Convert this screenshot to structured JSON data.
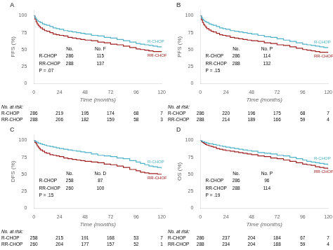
{
  "chart_data": [
    {
      "type": "line",
      "line_style": "step",
      "title": "A",
      "x_label": "Time (months)",
      "y_label": "FFS (%)",
      "xlim": [
        0,
        120
      ],
      "ylim": [
        0,
        108
      ],
      "xticks": [
        0,
        24,
        48,
        72,
        96,
        120
      ],
      "yticks": [
        0,
        25,
        50,
        75,
        100
      ],
      "grid": false,
      "table_header": [
        "No.",
        "No. F"
      ],
      "annotations": [
        "P = .07"
      ],
      "at_risk_title": "No. at risk:",
      "series": [
        {
          "name": "R-CHOP",
          "color": "#4eb3c8",
          "no": 286,
          "events": 115,
          "at_risk": [
            286,
            219,
            195,
            174,
            68,
            7
          ],
          "x": [
            0,
            1,
            2,
            3,
            4,
            5,
            6,
            8,
            10,
            12,
            15,
            18,
            21,
            24,
            28,
            32,
            36,
            40,
            44,
            48,
            54,
            60,
            66,
            72,
            78,
            84,
            90,
            96,
            100,
            104,
            108,
            112,
            116,
            120
          ],
          "values": [
            100,
            97,
            95,
            93,
            92,
            91,
            90,
            88,
            87,
            86,
            84,
            82,
            81,
            80,
            78,
            77,
            76,
            75,
            74,
            73,
            71,
            70,
            68,
            67,
            65,
            63,
            61,
            59,
            58,
            57,
            56,
            55,
            54,
            53
          ]
        },
        {
          "name": "RR-CHOP",
          "color": "#a02020",
          "no": 288,
          "events": 137,
          "at_risk": [
            288,
            206,
            182,
            159,
            58,
            3
          ],
          "x": [
            0,
            1,
            2,
            3,
            4,
            5,
            6,
            8,
            10,
            12,
            15,
            18,
            21,
            24,
            28,
            32,
            36,
            40,
            44,
            48,
            54,
            60,
            66,
            72,
            78,
            84,
            90,
            96,
            100,
            104,
            108,
            112,
            116,
            120
          ],
          "values": [
            100,
            95,
            91,
            88,
            86,
            84,
            82,
            80,
            78,
            77,
            75,
            73,
            72,
            71,
            70,
            68,
            67,
            66,
            65,
            64,
            63,
            61,
            60,
            58,
            57,
            55,
            53,
            51,
            50,
            49,
            48,
            47,
            47,
            46
          ]
        }
      ]
    },
    {
      "type": "line",
      "line_style": "step",
      "title": "B",
      "x_label": "Time (months)",
      "y_label": "PFS (%)",
      "xlim": [
        0,
        120
      ],
      "ylim": [
        0,
        108
      ],
      "xticks": [
        0,
        24,
        48,
        72,
        96,
        120
      ],
      "yticks": [
        0,
        25,
        50,
        75,
        100
      ],
      "grid": false,
      "table_header": [
        "No.",
        "No. P"
      ],
      "annotations": [
        "P = .15"
      ],
      "at_risk_title": "No. at risk:",
      "series": [
        {
          "name": "R-CHOP",
          "color": "#4eb3c8",
          "no": 286,
          "events": 114,
          "at_risk": [
            286,
            220,
            196,
            175,
            68,
            7
          ],
          "x": [
            0,
            1,
            2,
            3,
            4,
            5,
            6,
            8,
            10,
            12,
            15,
            18,
            21,
            24,
            28,
            32,
            36,
            40,
            44,
            48,
            54,
            60,
            66,
            72,
            78,
            84,
            90,
            96,
            100,
            104,
            108,
            112,
            116,
            120
          ],
          "values": [
            100,
            97,
            95,
            93,
            92,
            91,
            90,
            88,
            87,
            86,
            84,
            82,
            81,
            80,
            78,
            77,
            76,
            75,
            74,
            73,
            71,
            69,
            68,
            66,
            64,
            62,
            60,
            58,
            57,
            56,
            55,
            54,
            53,
            52
          ]
        },
        {
          "name": "RR-CHOP",
          "color": "#a02020",
          "no": 288,
          "events": 132,
          "at_risk": [
            288,
            214,
            189,
            166,
            59,
            4
          ],
          "x": [
            0,
            1,
            2,
            3,
            4,
            5,
            6,
            8,
            10,
            12,
            15,
            18,
            21,
            24,
            28,
            32,
            36,
            40,
            44,
            48,
            54,
            60,
            66,
            72,
            78,
            84,
            90,
            96,
            100,
            104,
            108,
            112,
            116,
            120
          ],
          "values": [
            100,
            94,
            90,
            87,
            85,
            83,
            81,
            79,
            77,
            76,
            74,
            72,
            71,
            70,
            68,
            67,
            66,
            65,
            64,
            63,
            62,
            60,
            59,
            57,
            56,
            54,
            52,
            50,
            49,
            48,
            47,
            46,
            46,
            45
          ]
        }
      ]
    },
    {
      "type": "line",
      "line_style": "step",
      "title": "C",
      "x_label": "Time (months)",
      "y_label": "DFS (%)",
      "xlim": [
        0,
        120
      ],
      "ylim": [
        0,
        108
      ],
      "xticks": [
        0,
        24,
        48,
        72,
        96,
        120
      ],
      "yticks": [
        0,
        25,
        50,
        75,
        100
      ],
      "grid": false,
      "table_header": [
        "No.",
        "No. D"
      ],
      "annotations": [
        "P = .15"
      ],
      "at_risk_title": "No. at risk:",
      "series": [
        {
          "name": "R-CHOP",
          "color": "#4eb3c8",
          "no": 258,
          "events": 87,
          "at_risk": [
            258,
            215,
            191,
            168,
            53,
            7
          ],
          "x": [
            0,
            1,
            2,
            3,
            4,
            5,
            6,
            8,
            10,
            12,
            15,
            18,
            21,
            24,
            28,
            32,
            36,
            40,
            44,
            48,
            54,
            60,
            66,
            72,
            78,
            84,
            90,
            96,
            100,
            104,
            108,
            112,
            116,
            120
          ],
          "values": [
            100,
            99,
            98,
            97,
            96,
            96,
            95,
            94,
            93,
            92,
            91,
            90,
            89,
            88,
            87,
            86,
            85,
            84,
            83,
            82,
            80,
            78,
            77,
            76,
            74,
            73,
            70,
            68,
            66,
            64,
            62,
            61,
            60,
            58
          ]
        },
        {
          "name": "RR-CHOP",
          "color": "#a02020",
          "no": 260,
          "events": 100,
          "at_risk": [
            260,
            204,
            177,
            157,
            52,
            1
          ],
          "x": [
            0,
            1,
            2,
            3,
            4,
            5,
            6,
            8,
            10,
            12,
            15,
            18,
            21,
            24,
            28,
            32,
            36,
            40,
            44,
            48,
            54,
            60,
            66,
            72,
            78,
            84,
            90,
            96,
            100,
            104,
            108,
            112,
            116,
            120
          ],
          "values": [
            100,
            97,
            95,
            92,
            90,
            88,
            86,
            84,
            82,
            81,
            79,
            78,
            77,
            76,
            74,
            73,
            72,
            71,
            70,
            69,
            68,
            67,
            65,
            64,
            62,
            60,
            57,
            55,
            53,
            52,
            51,
            51,
            50,
            50
          ]
        }
      ]
    },
    {
      "type": "line",
      "line_style": "step",
      "title": "D",
      "x_label": "Time (months)",
      "y_label": "OS (%)",
      "xlim": [
        0,
        120
      ],
      "ylim": [
        0,
        108
      ],
      "xticks": [
        0,
        24,
        48,
        72,
        96,
        120
      ],
      "yticks": [
        0,
        25,
        50,
        75,
        100
      ],
      "grid": false,
      "table_header": [
        "No.",
        "No. P"
      ],
      "annotations": [
        "P = .19"
      ],
      "at_risk_title": "No. at risk:",
      "series": [
        {
          "name": "R-CHOP",
          "color": "#4eb3c8",
          "no": 286,
          "events": 96,
          "at_risk": [
            286,
            237,
            204,
            184,
            67,
            7
          ],
          "x": [
            0,
            1,
            2,
            3,
            4,
            5,
            6,
            8,
            10,
            12,
            15,
            18,
            21,
            24,
            28,
            32,
            36,
            40,
            44,
            48,
            54,
            60,
            66,
            72,
            78,
            84,
            90,
            96,
            100,
            104,
            108,
            112,
            116,
            120
          ],
          "values": [
            100,
            99,
            98,
            98,
            97,
            97,
            96,
            95,
            95,
            94,
            93,
            92,
            91,
            90,
            89,
            88,
            87,
            86,
            85,
            84,
            82,
            81,
            80,
            78,
            77,
            75,
            73,
            71,
            69,
            68,
            67,
            66,
            65,
            63
          ]
        },
        {
          "name": "RR-CHOP",
          "color": "#a02020",
          "no": 288,
          "events": 114,
          "at_risk": [
            288,
            234,
            204,
            188,
            59,
            4
          ],
          "x": [
            0,
            1,
            2,
            3,
            4,
            5,
            6,
            8,
            10,
            12,
            15,
            18,
            21,
            24,
            28,
            32,
            36,
            40,
            44,
            48,
            54,
            60,
            66,
            72,
            78,
            84,
            90,
            96,
            100,
            104,
            108,
            112,
            116,
            120
          ],
          "values": [
            100,
            98,
            97,
            96,
            95,
            94,
            93,
            92,
            91,
            90,
            88,
            87,
            86,
            85,
            84,
            83,
            82,
            81,
            80,
            79,
            77,
            76,
            74,
            73,
            71,
            69,
            67,
            65,
            64,
            63,
            61,
            60,
            59,
            57
          ]
        }
      ]
    }
  ]
}
